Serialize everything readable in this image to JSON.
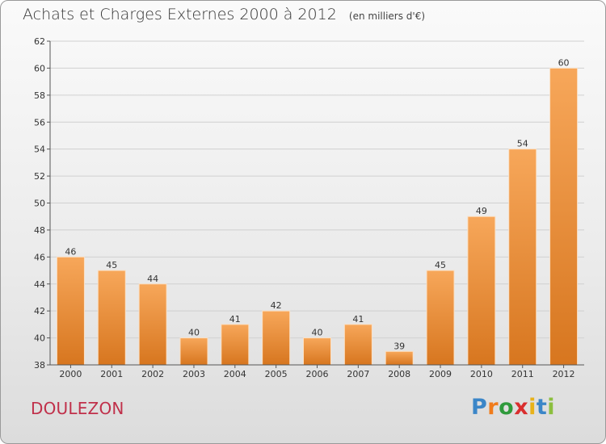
{
  "title": "Achats et Charges Externes 2000 à 2012",
  "unit_note": "(en milliers d'€)",
  "location": "DOULEZON",
  "brand": {
    "letters": [
      "P",
      "r",
      "o",
      "x",
      "i",
      "t",
      "i"
    ],
    "colors": [
      "#3b86c8",
      "#f07c1c",
      "#2f9a3c",
      "#d92e2e",
      "#e8b21a",
      "#3b86c8",
      "#8cbf3f"
    ]
  },
  "colors": {
    "bar_top": "#f7a75a",
    "bar_bottom": "#d7761f",
    "grid": "#d0d0d0",
    "location": "#c0304a"
  },
  "chart_data": {
    "type": "bar",
    "title": "Achats et Charges Externes 2000 à 2012",
    "subtitle": "(en milliers d'€)",
    "xlabel": "",
    "ylabel": "",
    "categories": [
      "2000",
      "2001",
      "2002",
      "2003",
      "2004",
      "2005",
      "2006",
      "2007",
      "2008",
      "2009",
      "2010",
      "2011",
      "2012"
    ],
    "values": [
      46,
      45,
      44,
      40,
      41,
      42,
      40,
      41,
      39,
      45,
      49,
      54,
      60
    ],
    "ylim": [
      38,
      62
    ],
    "yticks": [
      38,
      40,
      42,
      44,
      46,
      48,
      50,
      52,
      54,
      56,
      58,
      60,
      62
    ],
    "grid": "horizontal",
    "data_labels": true
  }
}
